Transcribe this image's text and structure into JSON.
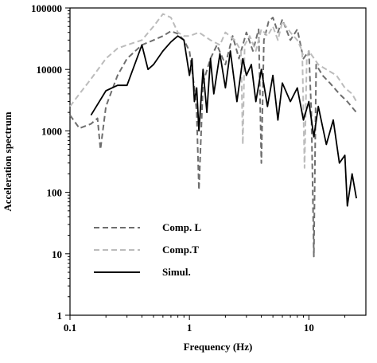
{
  "chart_data": {
    "type": "line",
    "xlabel": "Frequency (Hz)",
    "ylabel": "Acceleration spectrum",
    "xlog": true,
    "ylog": true,
    "xlim": [
      0.1,
      30
    ],
    "ylim": [
      1,
      100000
    ],
    "xticks": [
      0.1,
      1,
      10
    ],
    "yticks": [
      1,
      10,
      100,
      1000,
      10000,
      100000
    ],
    "legend": "lower left",
    "series": [
      {
        "name": "Comp. L",
        "color": "#6e6e6e",
        "linestyle": "dashed",
        "x": [
          0.1,
          0.12,
          0.15,
          0.17,
          0.18,
          0.2,
          0.25,
          0.3,
          0.4,
          0.5,
          0.6,
          0.7,
          0.8,
          0.9,
          1.0,
          1.1,
          1.15,
          1.2,
          1.3,
          1.5,
          1.7,
          2.0,
          2.3,
          2.6,
          3.0,
          3.4,
          3.8,
          4.0,
          4.2,
          4.6,
          5.0,
          5.5,
          6.0,
          7.0,
          8.0,
          9.0,
          10.0,
          10.5,
          11.0,
          11.5,
          13.0,
          15.0,
          18.0,
          21.0,
          25.0
        ],
        "values": [
          1800,
          1100,
          1300,
          1600,
          500,
          2500,
          8000,
          15000,
          25000,
          30000,
          35000,
          42000,
          38000,
          30000,
          20000,
          5000,
          2000,
          110,
          6000,
          15000,
          25000,
          12000,
          35000,
          15000,
          40000,
          20000,
          45000,
          300,
          30000,
          60000,
          70000,
          40000,
          65000,
          30000,
          45000,
          15000,
          20000,
          2000,
          9,
          12000,
          8000,
          6000,
          4000,
          3000,
          2000
        ]
      },
      {
        "name": "Comp.T",
        "color": "#bcbcbc",
        "linestyle": "dashed",
        "x": [
          0.1,
          0.12,
          0.15,
          0.2,
          0.25,
          0.3,
          0.4,
          0.5,
          0.6,
          0.7,
          0.8,
          0.9,
          1.0,
          1.2,
          1.5,
          1.8,
          2.0,
          2.4,
          2.7,
          2.8,
          2.9,
          3.2,
          3.6,
          4.0,
          4.5,
          5.0,
          5.5,
          6.0,
          7.0,
          8.0,
          8.8,
          9.2,
          9.6,
          10.0,
          12.0,
          14.0,
          17.0,
          20.0,
          23.0,
          25.0
        ],
        "values": [
          2500,
          4000,
          7000,
          15000,
          22000,
          25000,
          30000,
          50000,
          80000,
          70000,
          40000,
          35000,
          35000,
          40000,
          30000,
          25000,
          40000,
          30000,
          20000,
          600,
          25000,
          35000,
          20000,
          45000,
          35000,
          50000,
          30000,
          60000,
          40000,
          30000,
          20000,
          250,
          15000,
          20000,
          12000,
          10000,
          8000,
          5000,
          4000,
          3000
        ]
      },
      {
        "name": "Simul.",
        "color": "#000000",
        "linestyle": "solid",
        "x": [
          0.15,
          0.2,
          0.25,
          0.3,
          0.4,
          0.45,
          0.5,
          0.6,
          0.7,
          0.8,
          0.9,
          1.0,
          1.05,
          1.1,
          1.15,
          1.2,
          1.3,
          1.4,
          1.5,
          1.6,
          1.8,
          2.0,
          2.2,
          2.5,
          2.8,
          3.0,
          3.3,
          3.6,
          4.0,
          4.5,
          5.0,
          5.5,
          6.0,
          7.0,
          8.0,
          9.0,
          10.0,
          11.0,
          12.0,
          14.0,
          16.0,
          18.0,
          20.0,
          21.0,
          23.0,
          25.0
        ],
        "values": [
          1800,
          4500,
          5500,
          5500,
          25000,
          10000,
          12000,
          20000,
          28000,
          35000,
          30000,
          8000,
          15000,
          3000,
          5000,
          1000,
          10000,
          2000,
          15000,
          4000,
          18000,
          5000,
          20000,
          3000,
          15000,
          8000,
          12000,
          3000,
          10000,
          2500,
          8000,
          1500,
          6000,
          3000,
          5000,
          1500,
          3000,
          800,
          2500,
          600,
          1500,
          300,
          400,
          60,
          200,
          80
        ]
      }
    ]
  }
}
